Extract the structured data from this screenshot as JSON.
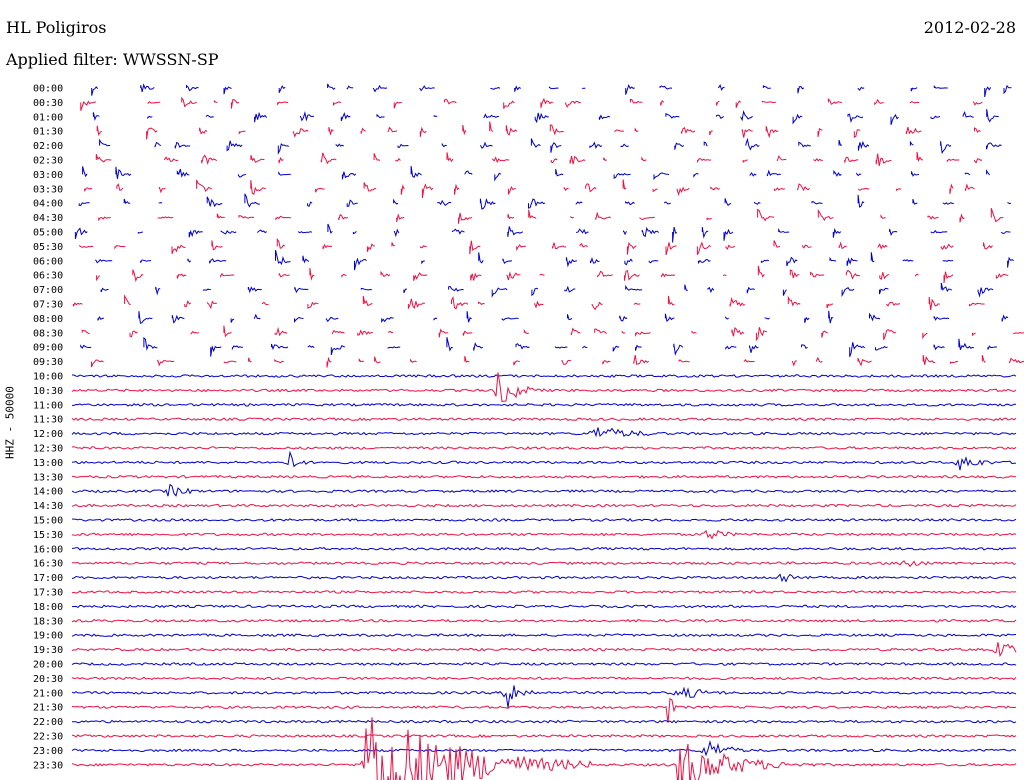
{
  "header": {
    "station": "HL Poligiros",
    "date": "2012-02-28",
    "filter": "Applied filter: WWSSN-SP"
  },
  "chart_data": {
    "type": "line",
    "title": "HL Poligiros",
    "ylabel": "HHZ - 50000",
    "row_interval_minutes": 30,
    "row_labels": [
      "00:00",
      "00:30",
      "01:00",
      "01:30",
      "02:00",
      "02:30",
      "03:00",
      "03:30",
      "04:00",
      "04:30",
      "05:00",
      "05:30",
      "06:00",
      "06:30",
      "07:00",
      "07:30",
      "08:00",
      "08:30",
      "09:00",
      "09:30",
      "10:00",
      "10:30",
      "11:00",
      "11:30",
      "12:00",
      "12:30",
      "13:00",
      "13:30",
      "14:00",
      "14:30",
      "15:00",
      "15:30",
      "16:00",
      "16:30",
      "17:00",
      "17:30",
      "18:00",
      "18:30",
      "19:00",
      "19:30",
      "20:00",
      "20:30",
      "21:00",
      "21:30",
      "22:00",
      "22:30",
      "23:00",
      "23:30"
    ],
    "colors": {
      "even": "#0000cc",
      "odd": "#ee1144"
    },
    "continuous_from_row": 20,
    "events": [
      {
        "row": 21,
        "pos": 0.45,
        "amp": 20,
        "len": 0.02
      },
      {
        "row": 24,
        "pos": 0.55,
        "amp": 9,
        "len": 0.04
      },
      {
        "row": 26,
        "pos": 0.23,
        "amp": 12,
        "len": 0.01
      },
      {
        "row": 26,
        "pos": 0.94,
        "amp": 10,
        "len": 0.02
      },
      {
        "row": 28,
        "pos": 0.1,
        "amp": 8,
        "len": 0.02
      },
      {
        "row": 31,
        "pos": 0.67,
        "amp": 8,
        "len": 0.02
      },
      {
        "row": 33,
        "pos": 0.88,
        "amp": 7,
        "len": 0.02
      },
      {
        "row": 34,
        "pos": 0.75,
        "amp": 7,
        "len": 0.02
      },
      {
        "row": 39,
        "pos": 0.98,
        "amp": 10,
        "len": 0.02
      },
      {
        "row": 42,
        "pos": 0.46,
        "amp": 18,
        "len": 0.015
      },
      {
        "row": 42,
        "pos": 0.64,
        "amp": 8,
        "len": 0.03
      },
      {
        "row": 43,
        "pos": 0.63,
        "amp": 22,
        "len": 0.005
      },
      {
        "row": 47,
        "pos": 0.31,
        "amp": 70,
        "len": 0.08
      },
      {
        "row": 47,
        "pos": 0.64,
        "amp": 30,
        "len": 0.05
      },
      {
        "row": 46,
        "pos": 0.67,
        "amp": 14,
        "len": 0.02
      }
    ]
  }
}
